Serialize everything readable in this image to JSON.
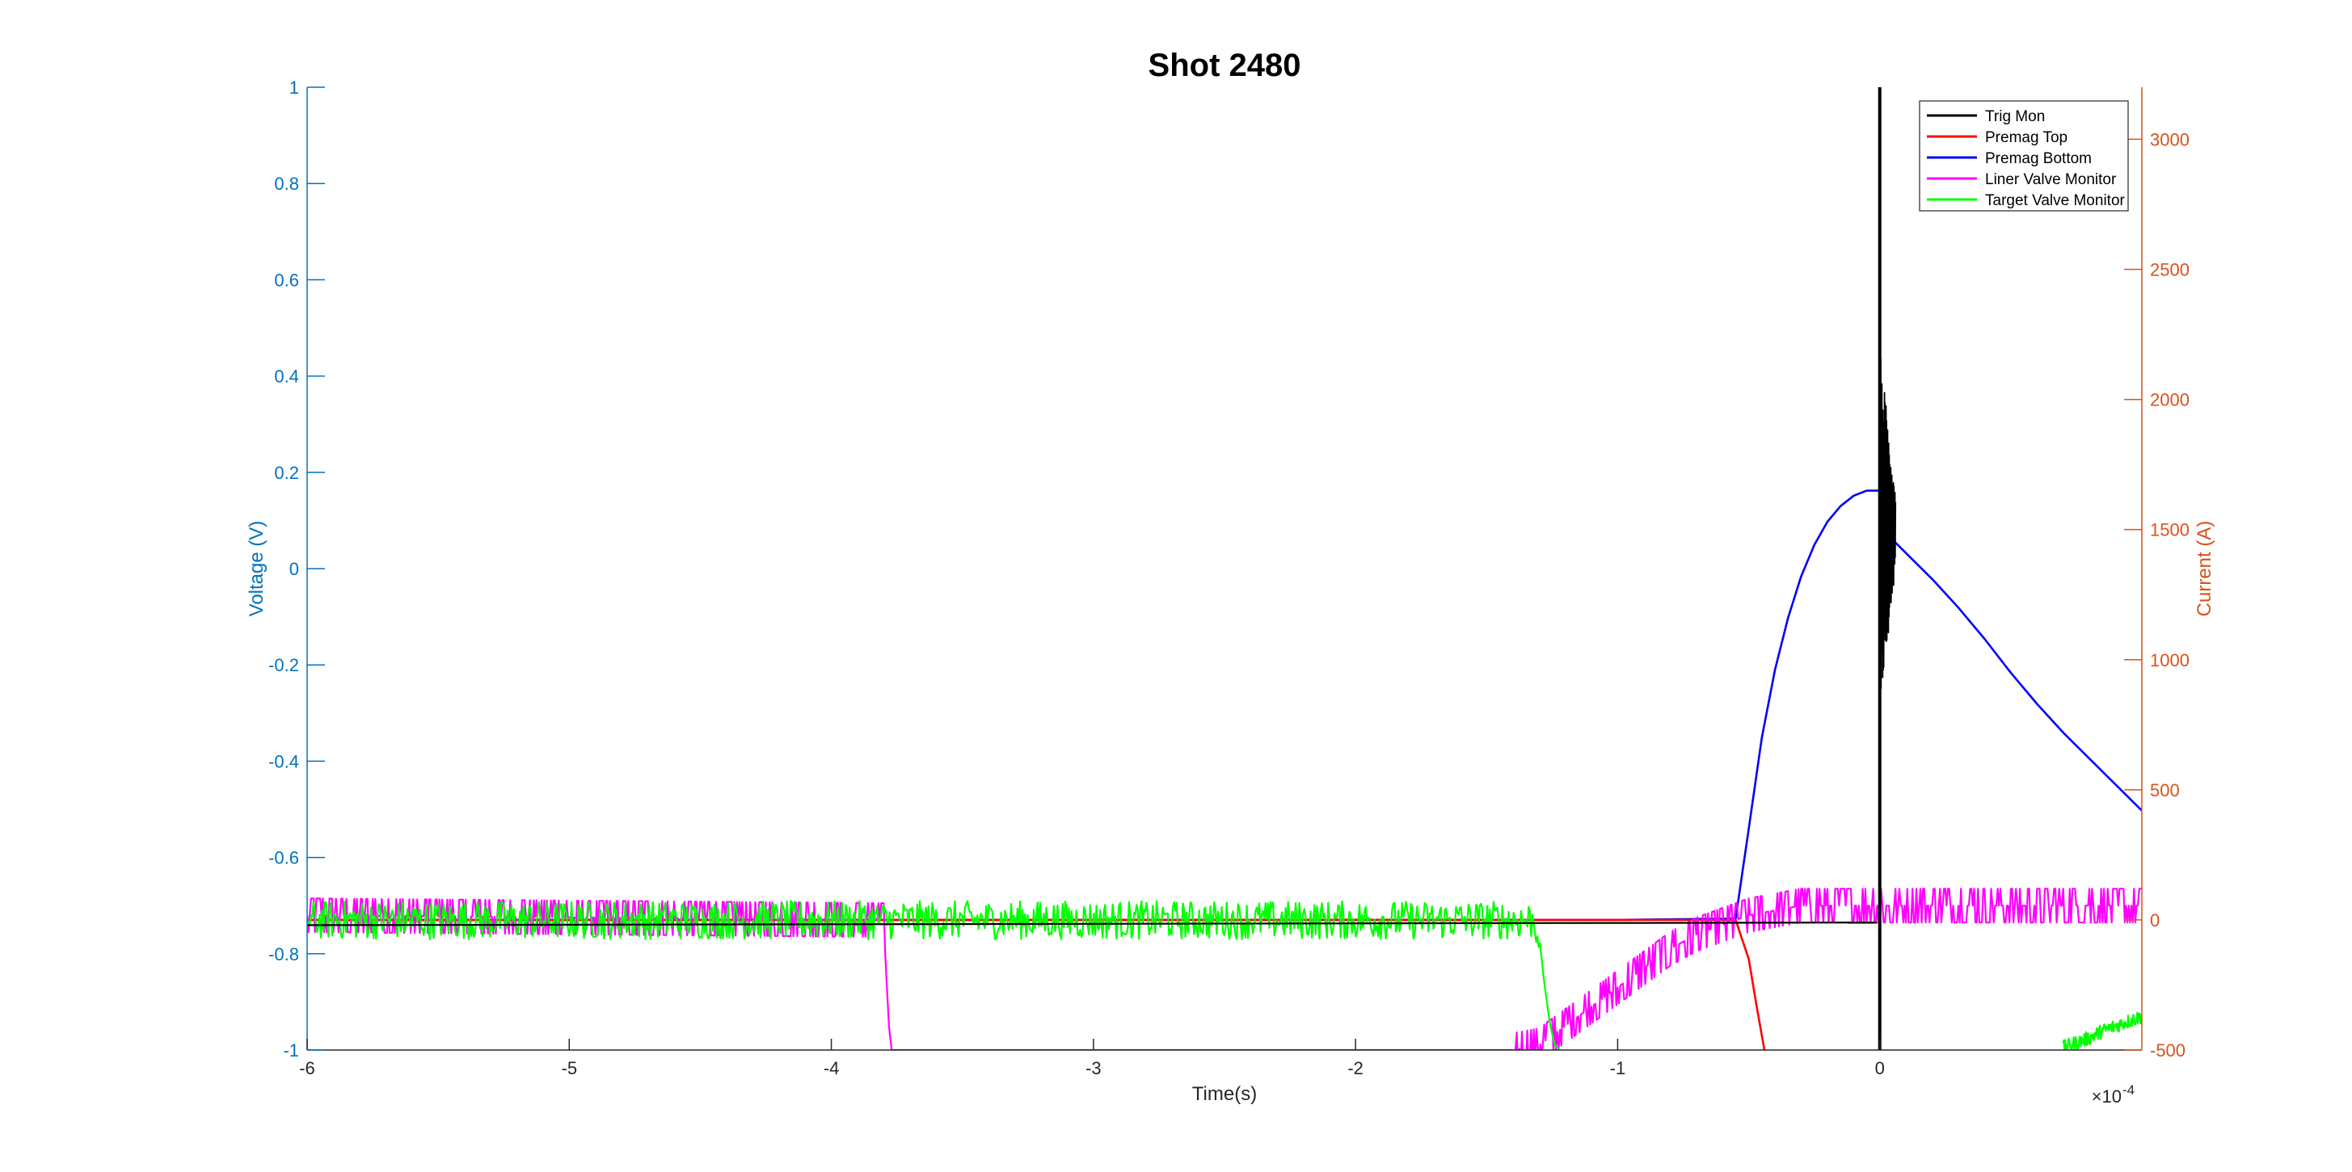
{
  "chart_data": {
    "type": "line",
    "title": "Shot 2480",
    "xlabel": "Time(s)",
    "x_exponent_label": "×10",
    "x_exponent_power": "-4",
    "ylabel_left": "Voltage (V)",
    "ylabel_right": "Current (A)",
    "xlim": [
      -6,
      1
    ],
    "ylim_left": [
      -1,
      1
    ],
    "ylim_right": [
      -500,
      3200
    ],
    "x_ticks": [
      -6,
      -5,
      -4,
      -3,
      -2,
      -1,
      0
    ],
    "x_tick_labels": [
      "-6",
      "-5",
      "-4",
      "-3",
      "-2",
      "-1",
      "0"
    ],
    "y_left_ticks": [
      -1,
      -0.8,
      -0.6,
      -0.4,
      -0.2,
      0,
      0.2,
      0.4,
      0.6,
      0.8,
      1
    ],
    "y_left_tick_labels": [
      "-1",
      "-0.8",
      "-0.6",
      "-0.4",
      "-0.2",
      "0",
      "0.2",
      "0.4",
      "0.6",
      "0.8",
      "1"
    ],
    "y_right_ticks": [
      -500,
      0,
      500,
      1000,
      1500,
      2000,
      2500,
      3000
    ],
    "y_right_tick_labels": [
      "-500",
      "0",
      "500",
      "1000",
      "1500",
      "2000",
      "2500",
      "3000"
    ],
    "grid": false,
    "legend_position": "top-right",
    "colors": {
      "left_axis": "#0072BD",
      "right_axis": "#D95319"
    },
    "series": [
      {
        "name": "Trig Mon",
        "color": "#000000",
        "axis": "right",
        "x": [
          -6,
          -1.0,
          -0.5,
          -0.02,
          0.0,
          0.0,
          0.0,
          0.02,
          0.04,
          0.06,
          1
        ],
        "y": [
          -20,
          -20,
          -10,
          -10,
          3400,
          -500,
          1900,
          800,
          1700,
          1000,
          1500
        ]
      },
      {
        "name": "Premag Top",
        "color": "#FF0000",
        "axis": "right",
        "x": [
          -6,
          -1.0,
          -0.55,
          -0.5,
          -0.47,
          -0.44
        ],
        "y": [
          0,
          0,
          0,
          -150,
          -330,
          -500
        ]
      },
      {
        "name": "Premag Bottom",
        "color": "#0000FF",
        "axis": "right",
        "x": [
          -6,
          -1.0,
          -0.55,
          -0.5,
          -0.45,
          -0.4,
          -0.35,
          -0.3,
          -0.25,
          -0.2,
          -0.15,
          -0.1,
          -0.05,
          0.0,
          0.03,
          0.06,
          0.1,
          0.2,
          0.3,
          0.4,
          0.5,
          0.6,
          0.7,
          0.8,
          0.9,
          1.0
        ],
        "y": [
          0,
          0,
          5,
          350,
          700,
          960,
          1160,
          1320,
          1440,
          1530,
          1590,
          1630,
          1650,
          1650,
          1530,
          1450,
          1410,
          1310,
          1200,
          1080,
          950,
          830,
          720,
          620,
          520,
          420
        ]
      },
      {
        "name": "Liner Valve Monitor",
        "color": "#FF00FF",
        "axis": "left",
        "x": [
          -6,
          -3.8,
          -3.79,
          -3.78,
          -3.77,
          -1.4,
          -1.3,
          -1.2,
          -1.1,
          -1.0,
          -0.9,
          -0.8,
          -0.7,
          -0.6,
          -0.5,
          -0.4,
          -0.3,
          -0.2,
          -0.1,
          0.0,
          0.5,
          1.0
        ],
        "y": [
          -0.72,
          -0.73,
          -0.85,
          -0.95,
          -1.0,
          -1.0,
          -0.99,
          -0.95,
          -0.91,
          -0.87,
          -0.83,
          -0.79,
          -0.76,
          -0.74,
          -0.72,
          -0.71,
          -0.7,
          -0.7,
          -0.7,
          -0.7,
          -0.7,
          -0.7
        ],
        "noise": 0.035
      },
      {
        "name": "Target Valve Monitor",
        "color": "#00FF00",
        "axis": "left",
        "x": [
          -6,
          -1.32,
          -1.3,
          -1.28,
          -1.26,
          -1.24,
          -1.22
        ],
        "y": [
          -0.73,
          -0.73,
          -0.76,
          -0.86,
          -0.94,
          -0.99,
          -1.0
        ],
        "noise": 0.04,
        "tail_x": [
          0.7,
          0.75,
          0.8,
          0.85,
          0.9,
          0.95,
          1.0
        ],
        "tail_y": [
          -0.995,
          -0.985,
          -0.975,
          -0.96,
          -0.95,
          -0.94,
          -0.93
        ]
      }
    ]
  }
}
